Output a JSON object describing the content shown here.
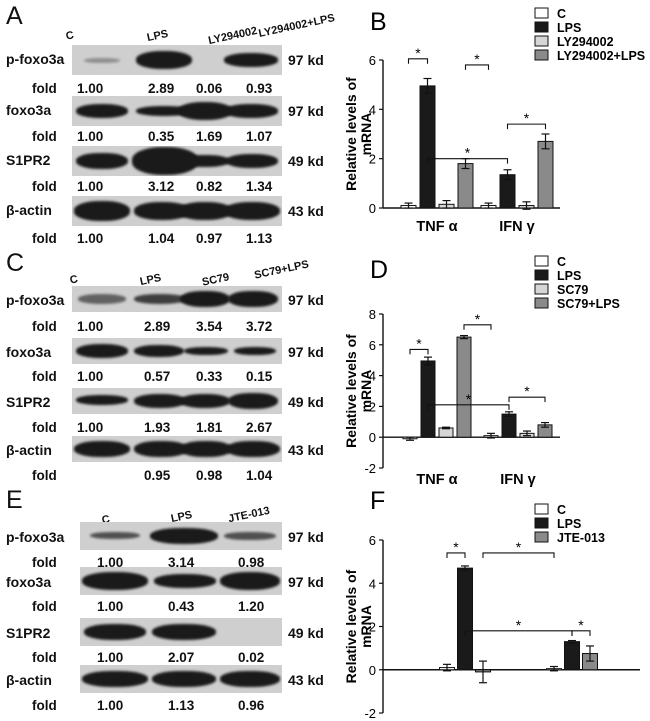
{
  "blots": [
    {
      "letter": "A",
      "lanes": [
        "C",
        "LPS",
        "LY294002",
        "LY294002+LPS"
      ],
      "rows": [
        {
          "protein": "p-foxo3a",
          "kd": "97 kd",
          "fold_label": "fold",
          "folds": [
            "1.00",
            "2.89",
            "0.06",
            "0.93"
          ]
        },
        {
          "protein": "foxo3a",
          "kd": "97 kd",
          "fold_label": "fold",
          "folds": [
            "1.00",
            "0.35",
            "1.69",
            "1.07"
          ]
        },
        {
          "protein": "S1PR2",
          "kd": "49 kd",
          "fold_label": "fold",
          "folds": [
            "1.00",
            "3.12",
            "0.82",
            "1.34"
          ]
        },
        {
          "protein": "β-actin",
          "kd": "43 kd",
          "fold_label": "fold",
          "folds": [
            "1.00",
            "1.04",
            "0.97",
            "1.13"
          ]
        }
      ]
    },
    {
      "letter": "C",
      "lanes": [
        "C",
        "LPS",
        "SC79",
        "SC79+LPS"
      ],
      "rows": [
        {
          "protein": "p-foxo3a",
          "kd": "97 kd",
          "fold_label": "fold",
          "folds": [
            "1.00",
            "2.89",
            "3.54",
            "3.72"
          ]
        },
        {
          "protein": "foxo3a",
          "kd": "97 kd",
          "fold_label": "fold",
          "folds": [
            "1.00",
            "0.57",
            "0.33",
            "0.15"
          ]
        },
        {
          "protein": "S1PR2",
          "kd": "49 kd",
          "fold_label": "fold",
          "folds": [
            "1.00",
            "1.93",
            "1.81",
            "2.67"
          ]
        },
        {
          "protein": "β-actin",
          "kd": "43 kd",
          "fold_label": "fold",
          "folds": [
            "",
            "0.95",
            "0.98",
            "1.04"
          ]
        }
      ]
    },
    {
      "letter": "E",
      "lanes": [
        "C",
        "LPS",
        "JTE-013"
      ],
      "rows": [
        {
          "protein": "p-foxo3a",
          "kd": "97 kd",
          "fold_label": "fold",
          "folds": [
            "1.00",
            "3.14",
            "0.98"
          ]
        },
        {
          "protein": "foxo3a",
          "kd": "97 kd",
          "fold_label": "fold",
          "folds": [
            "1.00",
            "0.43",
            "1.20"
          ]
        },
        {
          "protein": "S1PR2",
          "kd": "49 kd",
          "fold_label": "fold",
          "folds": [
            "1.00",
            "2.07",
            "0.02"
          ]
        },
        {
          "protein": "β-actin",
          "kd": "43 kd",
          "fold_label": "fold",
          "folds": [
            "1.00",
            "1.13",
            "0.96"
          ]
        }
      ]
    }
  ],
  "chart_data": [
    {
      "letter": "B",
      "type": "bar",
      "ylabel": "Relative levels of mRNA",
      "categories": [
        "TNF α",
        "IFN γ"
      ],
      "ylim": [
        0,
        6
      ],
      "yticks": [
        0,
        2,
        4,
        6
      ],
      "series": [
        {
          "name": "C",
          "fill": "#ffffff",
          "values": [
            0.1,
            0.1
          ],
          "errors": [
            0.1,
            0.1
          ]
        },
        {
          "name": "LPS",
          "fill": "#1a1a1a",
          "values": [
            4.95,
            1.35
          ],
          "errors": [
            0.3,
            0.2
          ]
        },
        {
          "name": "LY294002",
          "fill": "#d6d6d6",
          "values": [
            0.15,
            0.1
          ],
          "errors": [
            0.15,
            0.15
          ]
        },
        {
          "name": "LY294002+LPS",
          "fill": "#8a8a8a",
          "values": [
            1.8,
            2.7
          ],
          "errors": [
            0.2,
            0.3
          ]
        }
      ],
      "significance": [
        "*",
        "*",
        "*",
        "*"
      ]
    },
    {
      "letter": "D",
      "type": "bar",
      "ylabel": "Relative levels of mRNA",
      "categories": [
        "TNF α",
        "IFN γ"
      ],
      "ylim": [
        -2,
        8
      ],
      "yticks": [
        -2,
        0,
        2,
        4,
        6,
        8
      ],
      "series": [
        {
          "name": "C",
          "fill": "#ffffff",
          "values": [
            -0.1,
            0.1
          ],
          "errors": [
            0.1,
            0.15
          ]
        },
        {
          "name": "LPS",
          "fill": "#1a1a1a",
          "values": [
            4.95,
            1.5
          ],
          "errors": [
            0.25,
            0.15
          ]
        },
        {
          "name": "SC79",
          "fill": "#d6d6d6",
          "values": [
            0.6,
            0.25
          ],
          "errors": [
            0.05,
            0.15
          ]
        },
        {
          "name": "SC79+LPS",
          "fill": "#8a8a8a",
          "values": [
            6.5,
            0.8
          ],
          "errors": [
            0.1,
            0.15
          ]
        }
      ],
      "significance": [
        "*",
        "*",
        "*",
        "*"
      ]
    },
    {
      "letter": "F",
      "type": "bar",
      "ylabel": "Relative levels of mRNA",
      "categories": [
        "TNF α",
        "IFN γ"
      ],
      "ylim": [
        -2,
        6
      ],
      "yticks": [
        -2,
        0,
        2,
        4,
        6
      ],
      "series": [
        {
          "name": "C",
          "fill": "#ffffff",
          "values": [
            0.1,
            0.05
          ],
          "errors": [
            0.15,
            0.1
          ]
        },
        {
          "name": "LPS",
          "fill": "#1a1a1a",
          "values": [
            4.7,
            1.3
          ],
          "errors": [
            0.1,
            0.05
          ]
        },
        {
          "name": "JTE-013",
          "fill": "#8a8a8a",
          "values": [
            -0.1,
            0.75
          ],
          "errors": [
            0.5,
            0.35
          ]
        }
      ],
      "significance": [
        "*",
        "*",
        "*",
        "*"
      ]
    }
  ]
}
